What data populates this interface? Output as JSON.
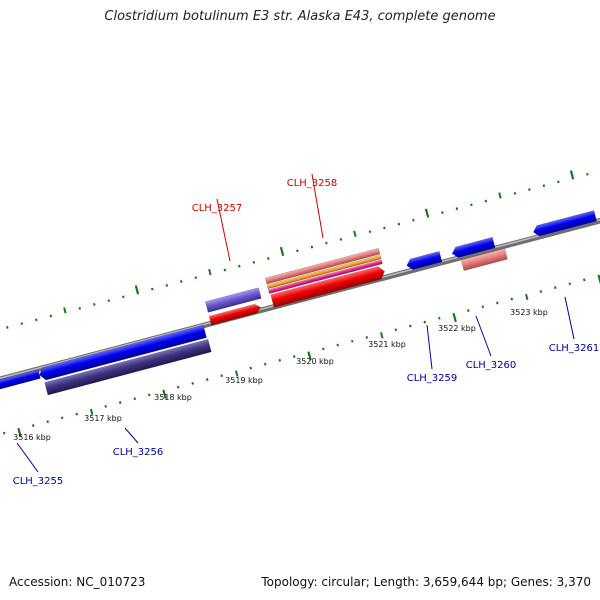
{
  "title": "Clostridium botulinum E3 str. Alaska E43, complete genome",
  "footer": {
    "accession": "Accession: NC_010723",
    "summary": "Topology: circular; Length: 3,659,644 bp; Genes: 3,370"
  },
  "colors": {
    "genome_line": "#888888",
    "tick": "#1a7a1a",
    "forward_gene": "#0000ee",
    "reverse_gene_dark": "#3d3480",
    "feature_red": "#ee0000",
    "feature_violet": "#6a5acd",
    "feature_rose": "#e98080",
    "feature_orange": "#f5a030",
    "feature_magenta": "#ee2090",
    "label_red": "#cc0000",
    "label_blue": "#000099"
  },
  "scale_labels": [
    "3516 kbp",
    "3517 kbp",
    "3518 kbp",
    "3519 kbp",
    "3520 kbp",
    "3521 kbp",
    "3522 kbp",
    "3523 kbp"
  ],
  "gene_labels": [
    {
      "id": "CLH_3255",
      "color": "blue"
    },
    {
      "id": "CLH_3256",
      "color": "blue"
    },
    {
      "id": "CLH_3257",
      "color": "red"
    },
    {
      "id": "CLH_3258",
      "color": "red"
    },
    {
      "id": "CLH_3259",
      "color": "blue"
    },
    {
      "id": "CLH_3260",
      "color": "blue"
    },
    {
      "id": "CLH_3261",
      "color": "blue"
    }
  ]
}
